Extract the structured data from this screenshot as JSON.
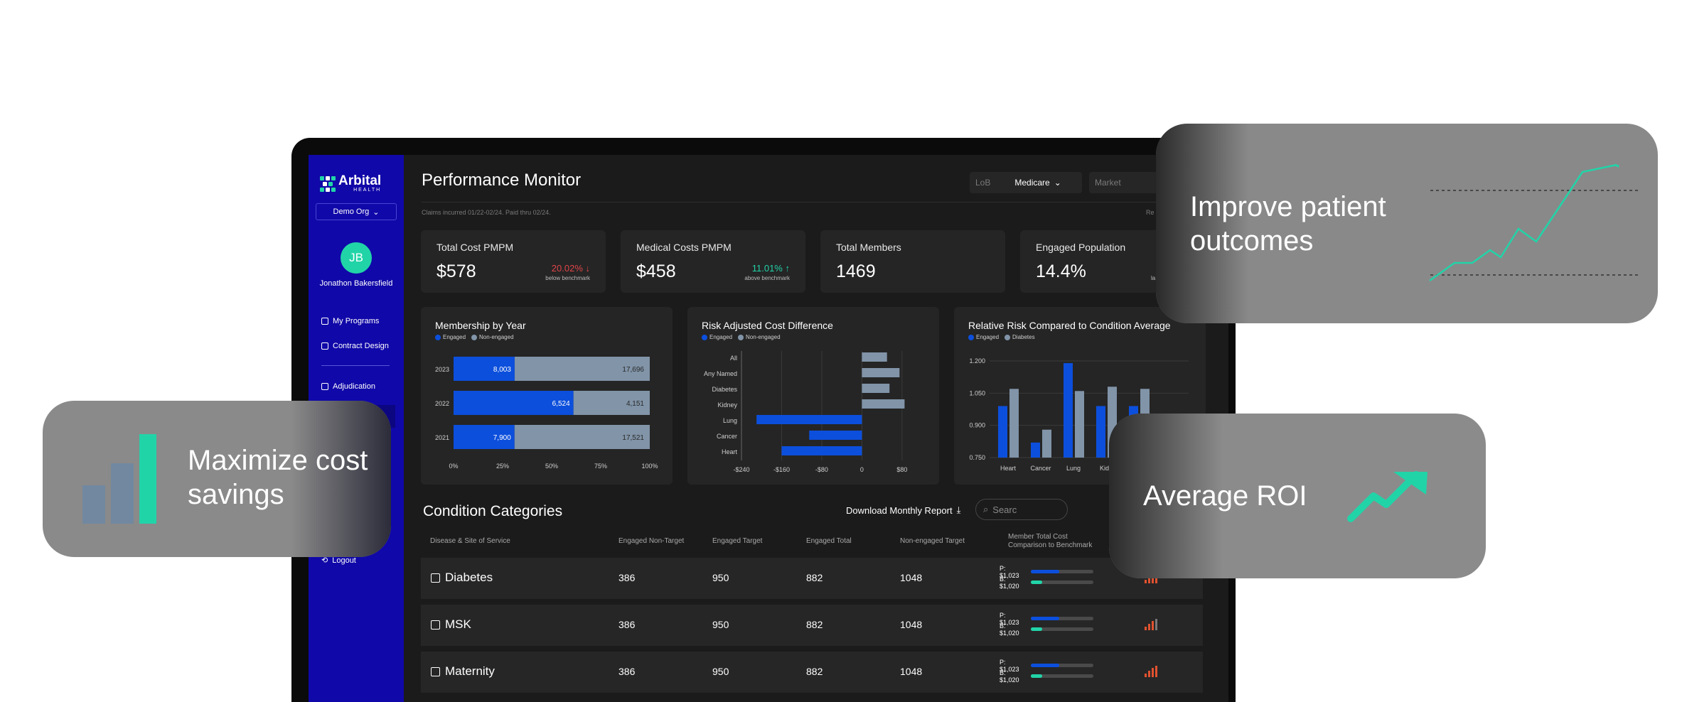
{
  "app": {
    "logo_name": "Arbital",
    "logo_sub": "HEALTH",
    "org": "Demo Org",
    "user_initials": "JB",
    "user_name": "Jonathon Bakersfield"
  },
  "nav": {
    "my_programs": "My Programs",
    "contract_design": "Contract Design",
    "adjudication": "Adjudication",
    "logout": "Logout"
  },
  "header": {
    "title": "Performance Monitor",
    "claims_note": "Claims incurred 01/22-02/24. Paid thru 02/24.",
    "lob_placeholder": "LoB",
    "lob_value": "Medicare",
    "market_placeholder": "Market",
    "report_mark": "Re"
  },
  "kpis": [
    {
      "label": "Total Cost PMPM",
      "value": "$578",
      "delta": "20.02%",
      "delta_note": "below benchmark",
      "delta_color": "#e0454a",
      "arrow": "↓"
    },
    {
      "label": "Medical Costs PMPM",
      "value": "$458",
      "delta": "11.01%",
      "delta_note": "above benchmark",
      "delta_color": "#21d4a8",
      "arrow": "↑"
    },
    {
      "label": "Total Members",
      "value": "1469"
    },
    {
      "label": "Engaged Population",
      "value": "14.4%",
      "delta_note": "la"
    }
  ],
  "colors": {
    "engaged": "#0c4fdc",
    "non_engaged": "#8194a8",
    "accent": "#21d4a8",
    "negative": "#e0454a"
  },
  "chart_data": [
    {
      "type": "bar",
      "title": "Membership by Year",
      "orientation": "horizontal-stacked-percent",
      "legend": [
        "Engaged",
        "Non-engaged"
      ],
      "categories": [
        "2023",
        "2022",
        "2021"
      ],
      "series": [
        {
          "name": "Engaged",
          "values": [
            8003,
            6524,
            7900
          ],
          "labels": [
            "8,003",
            "6,524",
            "7,900"
          ]
        },
        {
          "name": "Non-engaged",
          "values": [
            17696,
            4151,
            17521
          ],
          "labels": [
            "17,696",
            "4,151",
            "17,521"
          ]
        }
      ],
      "x_ticks": [
        "0%",
        "25%",
        "50%",
        "75%",
        "100%"
      ]
    },
    {
      "type": "bar",
      "title": "Risk Adjusted Cost Difference",
      "orientation": "horizontal",
      "legend": [
        "Engaged",
        "Non-engaged"
      ],
      "categories": [
        "All",
        "Any Named",
        "Diabetes",
        "Kidney",
        "Lung",
        "Cancer",
        "Heart"
      ],
      "series": [
        {
          "name": "Engaged",
          "values": [
            0,
            0,
            0,
            0,
            -210,
            -105,
            -160
          ]
        },
        {
          "name": "Non-engaged",
          "values": [
            50,
            75,
            55,
            85,
            0,
            0,
            0
          ]
        }
      ],
      "x_ticks": [
        "-$240",
        "-$160",
        "-$80",
        "0",
        "$80"
      ],
      "xlim": [
        -240,
        100
      ]
    },
    {
      "type": "bar",
      "title": "Relative Risk Compared to Condition Average",
      "legend": [
        "Engaged",
        "Diabetes"
      ],
      "categories": [
        "Heart",
        "Cancer",
        "Lung",
        "Kidney",
        "Diabetes"
      ],
      "series": [
        {
          "name": "Engaged",
          "values": [
            0.99,
            0.82,
            1.19,
            0.99,
            0.99
          ]
        },
        {
          "name": "Diabetes",
          "values": [
            1.07,
            0.88,
            1.06,
            1.08,
            1.07
          ]
        }
      ],
      "y_ticks": [
        "1.200",
        "1.050",
        "0.900",
        "0.750"
      ],
      "ylim": [
        0.75,
        1.2
      ],
      "x_labels_visible": [
        "Heart",
        "Cancer",
        "Lung",
        "Kidn"
      ]
    }
  ],
  "conditions": {
    "title": "Condition Categories",
    "download": "Download Monthly Report",
    "search_placeholder": "Searc",
    "headers": [
      "Disease & Site of Service",
      "Engaged Non-Target",
      "Engaged Target",
      "Engaged Total",
      "Non-engaged Target",
      "Member Total Cost",
      "Comparison to Benchmark"
    ],
    "rows": [
      {
        "name": "Diabetes",
        "c1": "386",
        "c2": "950",
        "c3": "882",
        "c4": "1048",
        "p": "P: $1,023",
        "b": "B: $1,020",
        "p_frac": 0.45,
        "b_frac": 0.18
      },
      {
        "name": "MSK",
        "c1": "386",
        "c2": "950",
        "c3": "882",
        "c4": "1048",
        "p": "P: $1,023",
        "b": "B: $1,020",
        "p_frac": 0.45,
        "b_frac": 0.18
      },
      {
        "name": "Maternity",
        "c1": "386",
        "c2": "950",
        "c3": "882",
        "c4": "1048",
        "p": "P: $1,023",
        "b": "B: $1,020",
        "p_frac": 0.45,
        "b_frac": 0.18
      }
    ]
  },
  "cards": {
    "outcomes": "Improve patient outcomes",
    "savings": "Maximize cost savings",
    "roi": "Average ROI"
  }
}
